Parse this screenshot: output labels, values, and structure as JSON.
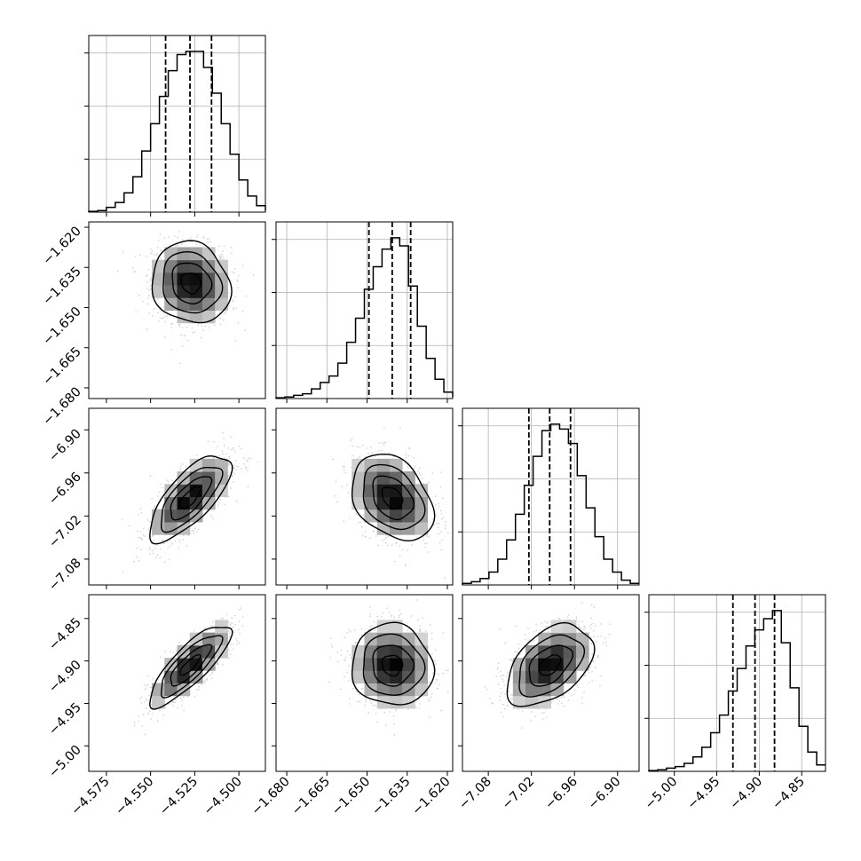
{
  "chart_data": {
    "type": "corner",
    "params": [
      {
        "range": [
          -4.585,
          -4.485
        ],
        "ticks": [
          -4.575,
          -4.55,
          -4.525,
          -4.5
        ],
        "tick_labels": [
          "−4.575",
          "−4.550",
          "−4.525",
          "−4.500"
        ],
        "quantiles": [
          -4.5415,
          -4.5277,
          -4.5155
        ]
      },
      {
        "range": [
          -1.684,
          -1.618
        ],
        "ticks": [
          -1.68,
          -1.665,
          -1.65,
          -1.635,
          -1.62
        ],
        "tick_labels": [
          "−1.680",
          "−1.665",
          "−1.650",
          "−1.635",
          "−1.620"
        ],
        "quantiles": [
          -1.6493,
          -1.6406,
          -1.6337
        ]
      },
      {
        "range": [
          -7.116,
          -6.87
        ],
        "ticks": [
          -7.08,
          -7.02,
          -6.96,
          -6.9
        ],
        "tick_labels": [
          "−7.08",
          "−7.02",
          "−6.96",
          "−6.90"
        ],
        "quantiles": [
          -7.0235,
          -6.9945,
          -6.9655
        ]
      },
      {
        "range": [
          -5.03,
          -4.822
        ],
        "ticks": [
          -5.0,
          -4.95,
          -4.9,
          -4.85
        ],
        "tick_labels": [
          "−5.00",
          "−4.95",
          "−4.90",
          "−4.85"
        ],
        "quantiles": [
          -4.931,
          -4.905,
          -4.882
        ]
      }
    ],
    "histograms": [
      {
        "param": 0,
        "bins_x": [
          -4.585,
          -4.58,
          -4.575,
          -4.57,
          -4.565,
          -4.56,
          -4.555,
          -4.55,
          -4.545,
          -4.54,
          -4.535,
          -4.53,
          -4.525,
          -4.52,
          -4.515,
          -4.51,
          -4.505,
          -4.5,
          -4.495,
          -4.49,
          -4.485
        ],
        "counts": [
          0.5,
          1,
          3,
          6,
          12,
          22,
          38,
          55,
          72,
          88,
          98,
          100,
          100,
          90,
          74,
          55,
          36,
          20,
          10,
          4,
          1
        ]
      },
      {
        "param": 1,
        "bins_x": [
          -1.684,
          -1.6807,
          -1.6774,
          -1.6741,
          -1.6708,
          -1.6675,
          -1.6642,
          -1.6609,
          -1.6576,
          -1.6543,
          -1.651,
          -1.6477,
          -1.6444,
          -1.6411,
          -1.6378,
          -1.6345,
          -1.6312,
          -1.6279,
          -1.6246,
          -1.6213,
          -1.618
        ],
        "counts": [
          0.5,
          1,
          2,
          3,
          6,
          10,
          14,
          22,
          35,
          50,
          68,
          82,
          93,
          100,
          95,
          70,
          45,
          25,
          12,
          4,
          1
        ]
      },
      {
        "param": 2,
        "bins_x": [
          -7.116,
          -7.1037,
          -7.0914,
          -7.0791,
          -7.0668,
          -7.0545,
          -7.0422,
          -7.0299,
          -7.0176,
          -7.0053,
          -6.993,
          -6.9807,
          -6.9684,
          -6.9561,
          -6.9438,
          -6.9315,
          -6.9192,
          -6.9069,
          -6.8946,
          -6.8823,
          -6.87
        ],
        "counts": [
          1,
          2,
          4,
          8,
          16,
          28,
          44,
          62,
          80,
          96,
          100,
          97,
          88,
          68,
          48,
          30,
          16,
          8,
          3,
          1
        ]
      },
      {
        "param": 3,
        "bins_x": [
          -5.03,
          -5.0196,
          -5.0092,
          -4.9988,
          -4.9884,
          -4.978,
          -4.9676,
          -4.9572,
          -4.9468,
          -4.9364,
          -4.926,
          -4.9156,
          -4.9052,
          -4.8948,
          -4.8844,
          -4.874,
          -4.8636,
          -4.8532,
          -4.8428,
          -4.8324,
          -4.822
        ],
        "counts": [
          0.5,
          1,
          2,
          3,
          5,
          9,
          15,
          24,
          35,
          50,
          64,
          78,
          88,
          95,
          100,
          80,
          52,
          28,
          12,
          4
        ]
      }
    ],
    "pairs": [
      {
        "x_param": 0,
        "y_param": 1,
        "mean": [
          -4.5272,
          -1.6408
        ],
        "sd": [
          0.0111,
          0.0076
        ],
        "corr": -0.12
      },
      {
        "x_param": 0,
        "y_param": 2,
        "mean": [
          -4.5277,
          -6.9945
        ],
        "sd": [
          0.0115,
          0.03
        ],
        "corr": 0.72
      },
      {
        "x_param": 1,
        "y_param": 2,
        "mean": [
          -1.6406,
          -6.9945
        ],
        "sd": [
          0.0076,
          0.03
        ],
        "corr": -0.33
      },
      {
        "x_param": 0,
        "y_param": 3,
        "mean": [
          -4.5277,
          -4.905
        ],
        "sd": [
          0.0115,
          0.024
        ],
        "corr": 0.82
      },
      {
        "x_param": 1,
        "y_param": 3,
        "mean": [
          -1.6406,
          -4.905
        ],
        "sd": [
          0.0076,
          0.024
        ],
        "corr": -0.05
      },
      {
        "x_param": 2,
        "y_param": 3,
        "mean": [
          -6.9945,
          -4.905
        ],
        "sd": [
          0.03,
          0.024
        ],
        "corr": 0.45
      }
    ],
    "contour_levels_sigma": [
      0.5,
      1.0,
      1.5,
      2.0
    ],
    "grid": true,
    "colors": {
      "scatter": "#bbbbbb",
      "density_dark": "#000000",
      "line": "#000000",
      "grid": "#b0b0b0"
    }
  }
}
